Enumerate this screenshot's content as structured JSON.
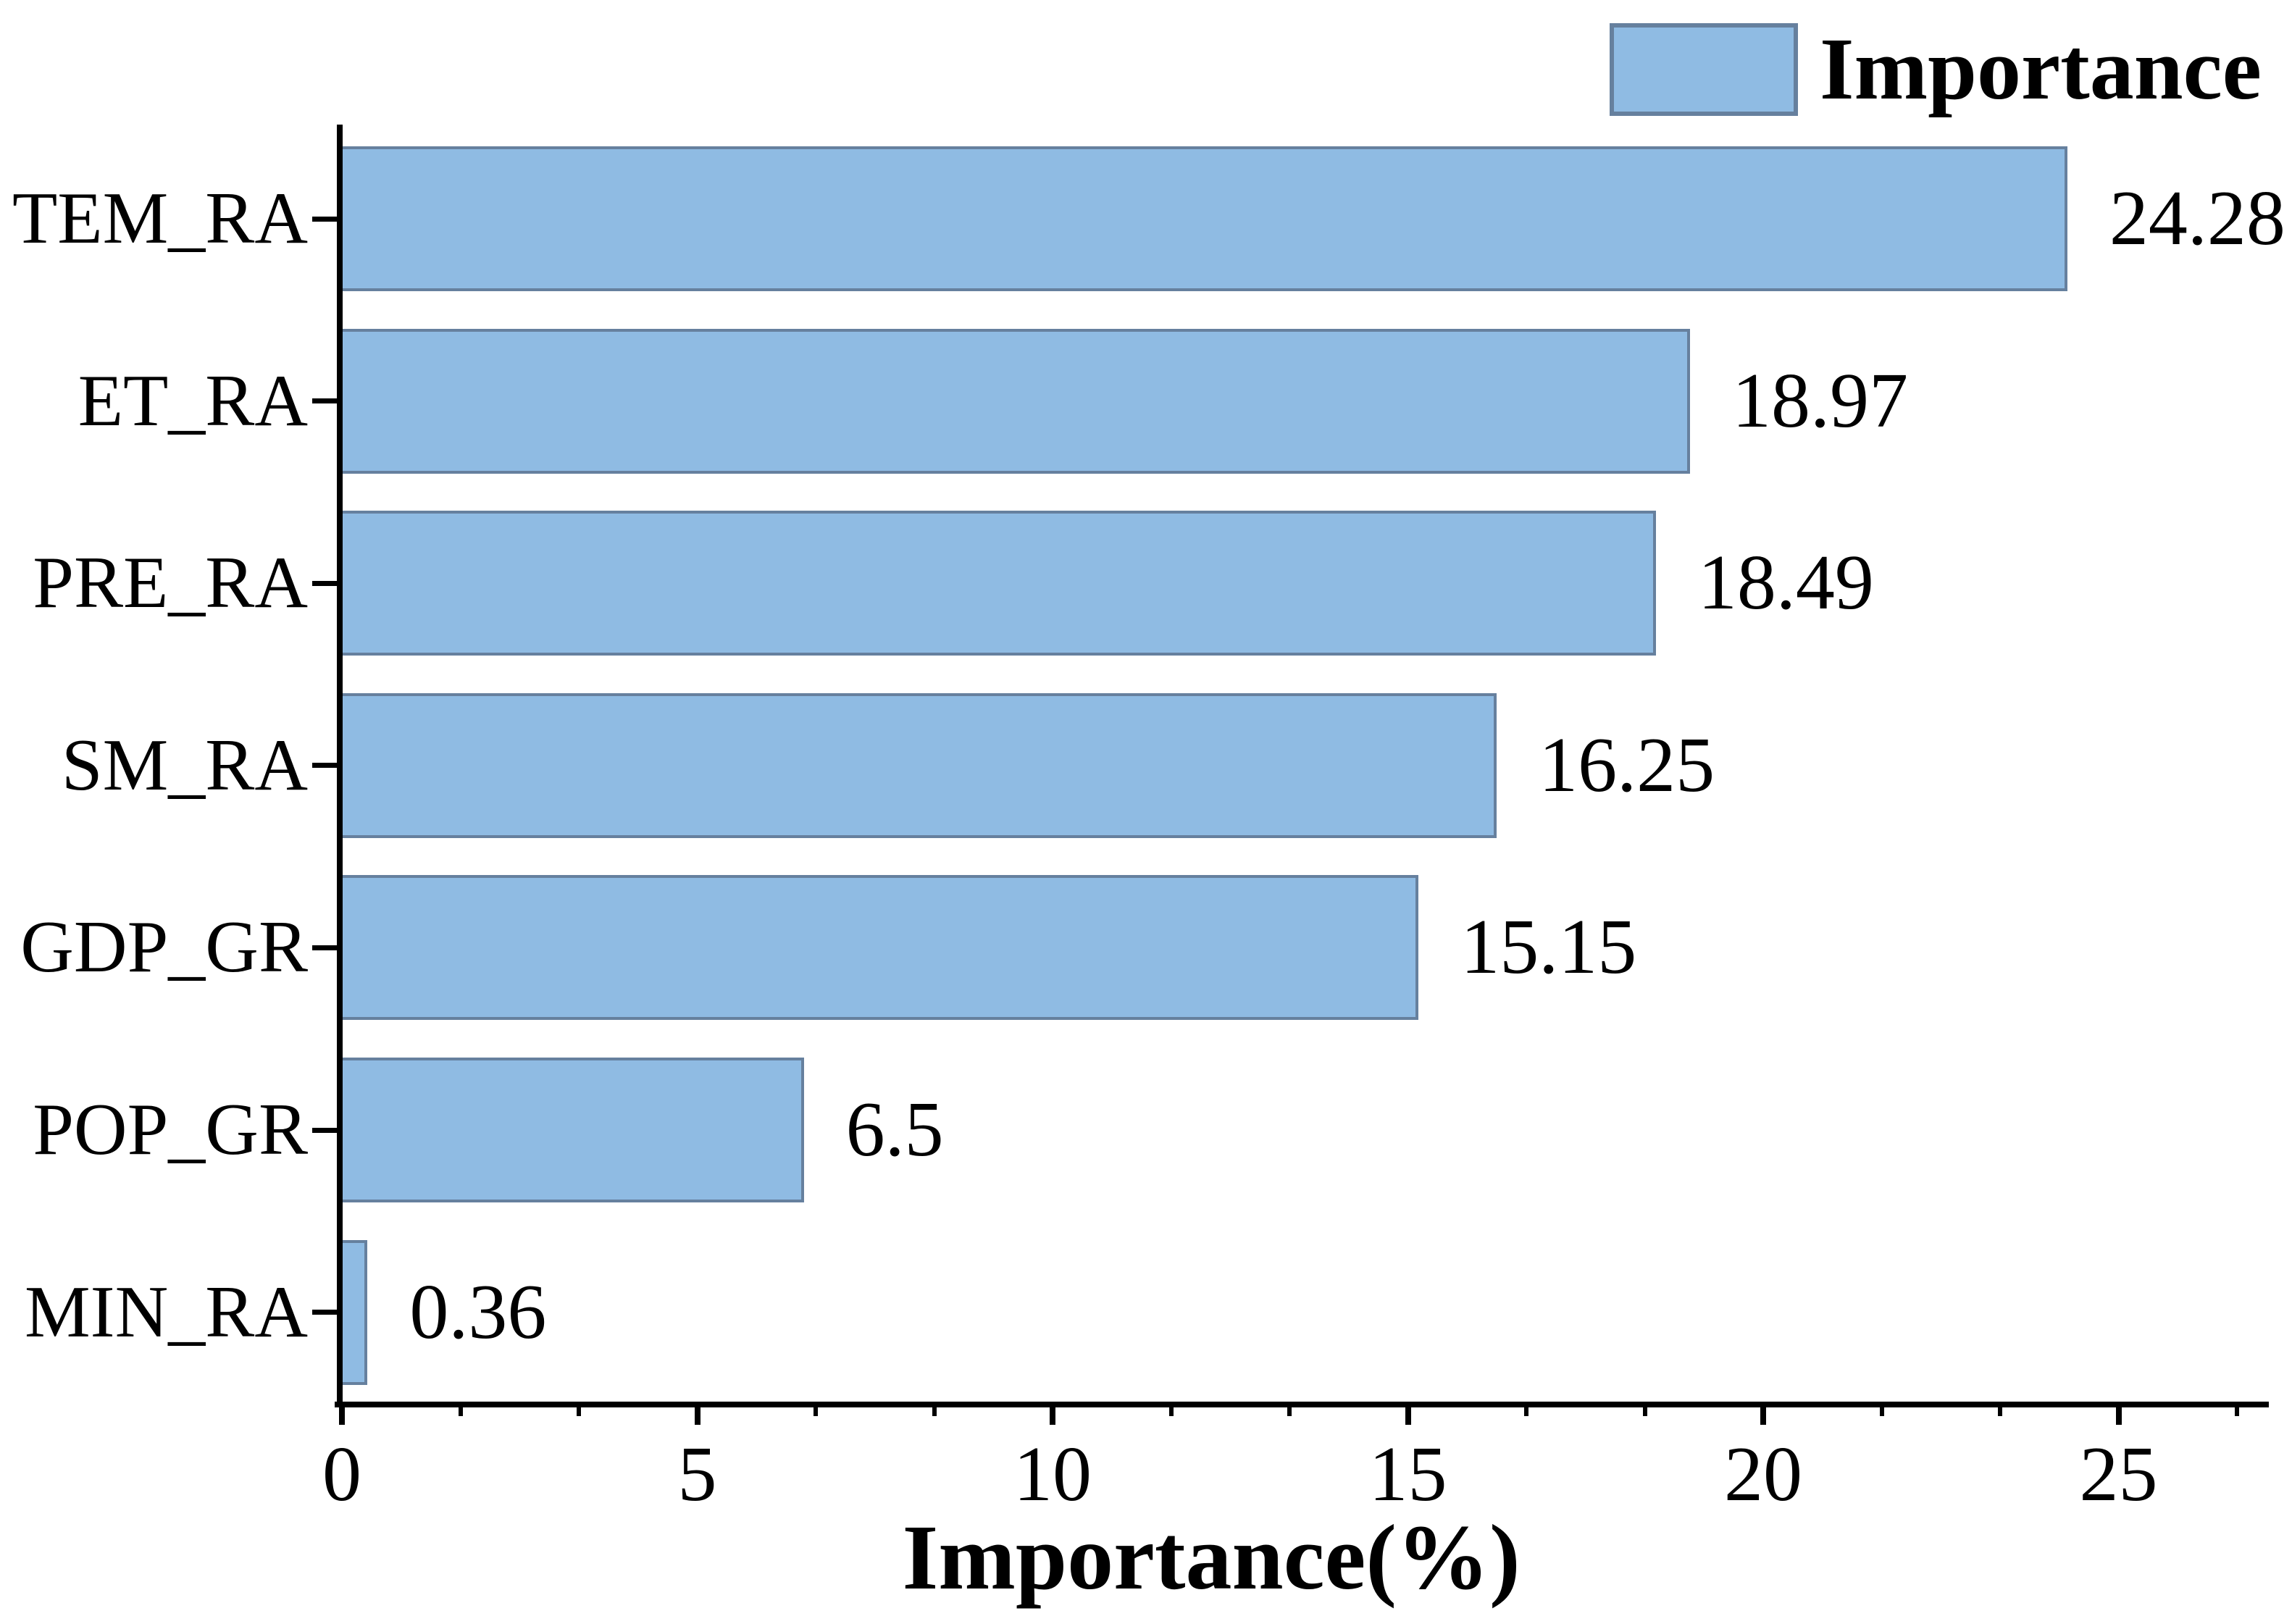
{
  "chart_data": {
    "type": "bar",
    "orientation": "horizontal",
    "title": "",
    "xlabel": "Importance(%)",
    "ylabel": "",
    "categories": [
      "TEM_RA",
      "ET_RA",
      "PRE_RA",
      "SM_RA",
      "GDP_GR",
      "POP_GR",
      "MIN_RA"
    ],
    "series": [
      {
        "name": "Importance",
        "values": [
          24.28,
          18.97,
          18.49,
          16.25,
          15.15,
          6.5,
          0.36
        ],
        "value_labels": [
          "24.28",
          "18.97",
          "18.49",
          "16.25",
          "15.15",
          "6.5",
          "0.36"
        ]
      }
    ],
    "xlim": [
      0,
      27.1
    ],
    "x_ticks": [
      0,
      5,
      10,
      15,
      20,
      25
    ],
    "x_tick_labels": [
      "0",
      "5",
      "10",
      "15",
      "20",
      "25"
    ],
    "minor_tick_step": 1.66667,
    "grid": false,
    "legend_position": "top-right",
    "colors": {
      "bar_fill": "#8FBBE3",
      "bar_border": "#66809E",
      "axis": "#000000",
      "text": "#000000",
      "background": "#FFFFFF"
    }
  },
  "legend": {
    "label": "Importance"
  }
}
